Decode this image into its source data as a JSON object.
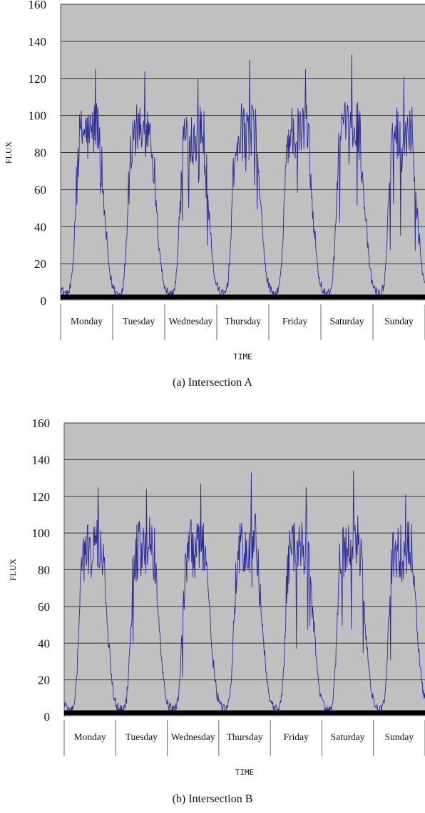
{
  "chart_data": [
    {
      "type": "line",
      "caption": "(a)  Intersection A",
      "ylabel": "FLUX",
      "xlabel": "TIME",
      "ylim": [
        0,
        160
      ],
      "yticks": [
        0,
        20,
        40,
        60,
        80,
        100,
        120,
        140,
        160
      ],
      "categories": [
        "Monday",
        "Tuesday",
        "Wednesday",
        "Thursday",
        "Friday",
        "Saturday",
        "Sunday"
      ],
      "grid": true,
      "series": [
        {
          "daily_profile": [
            8,
            5,
            4,
            3,
            5,
            10,
            25,
            55,
            80,
            88,
            90,
            92,
            90,
            88,
            90,
            92,
            94,
            95,
            88,
            70,
            50,
            35,
            22,
            12
          ],
          "daily_peaks": [
            125,
            124,
            120,
            130,
            125,
            133,
            121
          ]
        }
      ],
      "colors": {
        "line": "#2a2a9a",
        "plot_bg": "#c0c0c0",
        "grid": "#333333",
        "baseline": "#000000"
      }
    },
    {
      "type": "line",
      "caption": "(b)  Intersection B",
      "ylabel": "FLUX",
      "xlabel": "TIME",
      "ylim": [
        0,
        160
      ],
      "yticks": [
        0,
        20,
        40,
        60,
        80,
        100,
        120,
        140,
        160
      ],
      "categories": [
        "Monday",
        "Tuesday",
        "Wednesday",
        "Thursday",
        "Friday",
        "Saturday",
        "Sunday"
      ],
      "grid": true,
      "series": [
        {
          "daily_profile": [
            8,
            5,
            4,
            3,
            5,
            10,
            25,
            55,
            80,
            88,
            90,
            92,
            90,
            88,
            90,
            92,
            94,
            95,
            88,
            70,
            50,
            35,
            22,
            12
          ],
          "daily_peaks": [
            125,
            124,
            127,
            133,
            125,
            134,
            121
          ]
        }
      ],
      "colors": {
        "line": "#2a2a9a",
        "plot_bg": "#c0c0c0",
        "grid": "#333333",
        "baseline": "#000000"
      }
    }
  ]
}
